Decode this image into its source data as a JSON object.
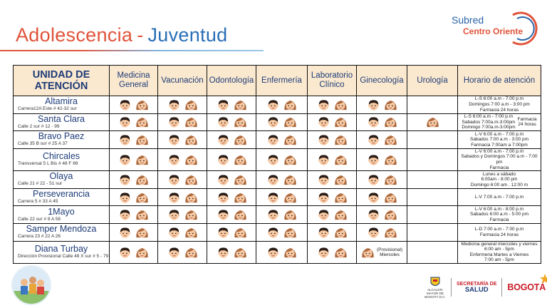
{
  "title": {
    "part1": "Adolescencia",
    "separator": "-",
    "part2": "Juventud"
  },
  "brand": {
    "line1": "Subred",
    "line2": "Centro Oriente"
  },
  "headers": [
    "UNIDAD DE ATENCIÓN",
    "Medicina General",
    "Vacunación",
    "Odontología",
    "Enfermería",
    "Laboratorio Clínico",
    "Ginecología",
    "Urología",
    "Horario de atención"
  ],
  "units": [
    {
      "name": "Altamira",
      "address": "Carrera12A Este # 42-32 sur",
      "services": [
        1,
        1,
        1,
        1,
        1,
        1,
        0
      ],
      "schedule": [
        "L-S 6:00 a.m - 7:00 p.m",
        "Domingos 7:00 a.m - 3:00 pm",
        "Farmacia 24 horas"
      ]
    },
    {
      "name": "Santa Clara",
      "address": "Calle 2 sur # 12 - 99",
      "services": [
        1,
        1,
        1,
        1,
        1,
        1,
        1
      ],
      "schedule": [
        "L-S 6:00 a.m - 7:00 p.m",
        "Sabados 7:00a.m-3:00pm",
        "Domingo 7:00a.m-3:00pm"
      ],
      "schedule_side": [
        "Farmacia",
        "24 horas"
      ]
    },
    {
      "name": "Bravo Paez",
      "address": "Calle 35 B sur # 25 A 37",
      "services": [
        1,
        1,
        1,
        1,
        1,
        1,
        0
      ],
      "schedule": [
        "L-V 6:00 a.m - 7:00 p.m",
        "Sabados 7:00 a.m - 3:00 pm",
        "Farmacia 7:00am a 7:00pm"
      ]
    },
    {
      "name": "Chircales",
      "address": "Transversal 5 L Bis # 48 F 69",
      "services": [
        1,
        1,
        1,
        1,
        1,
        1,
        0
      ],
      "schedule": [
        "L-V 6:00 a.m - 7:00 p.m",
        "Sabados y Domingos 7:00 a.m - 7:00 pm",
        "Farmacia"
      ]
    },
    {
      "name": "Olaya",
      "address": "Calle 21 # 22 - 51 sur",
      "services": [
        1,
        1,
        1,
        1,
        1,
        1,
        0
      ],
      "schedule": [
        "Lunes a sábado",
        "6:00am - 8:00 pm",
        "Domingo 6:00 am . 12:00 m"
      ]
    },
    {
      "name": "Perseverancia",
      "address": "Carrera 5 # 33 A 45",
      "services": [
        1,
        1,
        1,
        1,
        1,
        1,
        0
      ],
      "schedule": [
        "L-V 7:00 a.m - 7:00 p.m"
      ]
    },
    {
      "name": "1Mayo",
      "address": "Calle 22 sur # 8 A 58",
      "services": [
        1,
        1,
        1,
        1,
        1,
        1,
        0
      ],
      "schedule": [
        "L-V 6:00 a.m - 8:00 p.m",
        "Sabados 6:00 a.m - 5:00 pm",
        "Farmacia"
      ]
    },
    {
      "name": "Samper Mendoza",
      "address": "Carrera 23 # 22 A 26",
      "services": [
        1,
        1,
        1,
        1,
        1,
        1,
        0
      ],
      "schedule": [
        "L-D 7:00 a.m - 7:00 p.m",
        "Farmacia 24 horas"
      ]
    },
    {
      "name": "Diana Turbay",
      "address": "Dirección Provisional Calle 48 X sur # 5 - 79",
      "services": [
        1,
        1,
        1,
        1,
        1,
        0,
        0
      ],
      "schedule": [
        "Medicina general miercoles y viernes",
        "6:00 am - 5pm",
        "Enfermeria Martes a Viernes",
        "7:00 am - 5pm"
      ],
      "gyn_note": [
        "(Provisional)",
        "Miercoles"
      ]
    }
  ],
  "footer": {
    "alcaldia": "ALCALDÍA MAYOR DE BOGOTÁ D.C.",
    "secretaria_line1": "SECRETARÍA DE",
    "secretaria_line2": "SALUD",
    "bogota": "BOGOTÁ"
  },
  "colors": {
    "title_orange": "#e0533a",
    "title_blue": "#2a6fb6",
    "header_bg": "#fbe9cf",
    "header_text": "#1d3b78",
    "boy_hair": "#2a1c16",
    "girl_hair": "#a8653a",
    "skin": "#f7c9a3"
  }
}
